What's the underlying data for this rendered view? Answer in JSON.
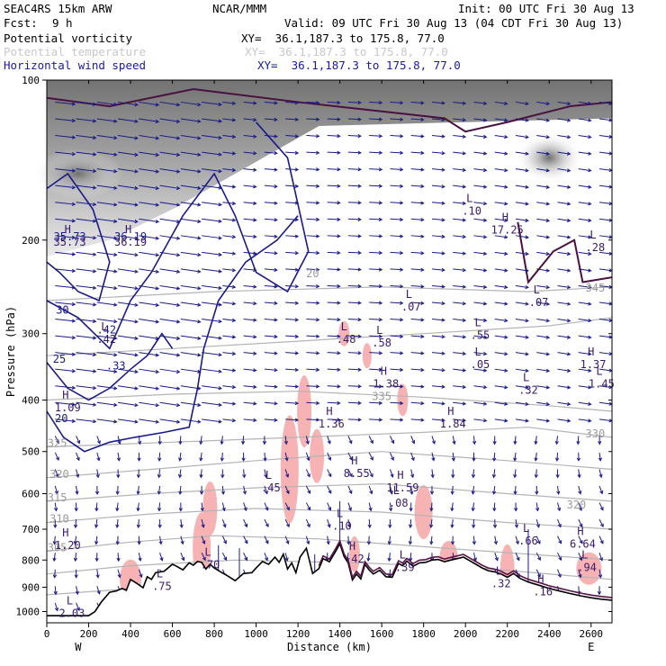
{
  "header": {
    "model": "SEAC4RS 15km ARW",
    "org": "NCAR/MMM",
    "init": "Init: 00 UTC Fri 30 Aug 13",
    "fcst_label": "Fcst:",
    "fcst_value": "9 h",
    "valid": "Valid: 09 UTC Fri 30 Aug 13 (04 CDT Fri 30 Aug 13)",
    "fields": [
      {
        "name": "Potential vorticity",
        "xy": "XY=  36.1,187.3 to 175.8, 77.0",
        "color": "#000000"
      },
      {
        "name": "Potential temperature",
        "xy": "XY=  36.1,187.3 to 175.8, 77.0",
        "color": "#c8c8c8"
      },
      {
        "name": "Horizontal wind speed",
        "xy": "XY=  36.1,187.3 to 175.8, 77.0",
        "color": "#1a1aa0"
      }
    ]
  },
  "chart_data": {
    "type": "line",
    "title": "",
    "xlabel": "Distance (km)",
    "ylabel": "Pressure (hPa)",
    "xlim": [
      0,
      2700
    ],
    "ylim": [
      1050,
      100
    ],
    "y_scale": "log",
    "x_ticks": [
      0,
      200,
      400,
      600,
      800,
      1000,
      1200,
      1400,
      1600,
      1800,
      2000,
      2200,
      2400,
      2600
    ],
    "y_ticks": [
      100,
      200,
      300,
      400,
      500,
      600,
      700,
      800,
      900,
      1000
    ],
    "x_end_labels": {
      "left": "W",
      "right": "E"
    },
    "terrain": {
      "x": [
        0,
        200,
        230,
        260,
        300,
        330,
        360,
        380,
        400,
        430,
        460,
        480,
        500,
        520,
        560,
        600,
        620,
        650,
        680,
        700,
        720,
        740,
        760,
        780,
        800,
        830,
        860,
        900,
        940,
        980,
        1000,
        1030,
        1060,
        1090,
        1110,
        1130,
        1150,
        1170,
        1190,
        1210,
        1240,
        1270,
        1300,
        1320,
        1350,
        1380,
        1400,
        1420,
        1440,
        1460,
        1480,
        1500,
        1520,
        1540,
        1560,
        1590,
        1620,
        1650,
        1680,
        1700,
        1720,
        1750,
        1780,
        1810,
        1840,
        1870,
        1900,
        1930,
        1960,
        1990,
        2020,
        2050,
        2080,
        2110,
        2140,
        2170,
        2200,
        2230,
        2260,
        2300,
        2350,
        2400,
        2450,
        2500,
        2550,
        2600,
        2650,
        2700
      ],
      "p": [
        1018,
        1018,
        1000,
        960,
        920,
        915,
        905,
        912,
        870,
        885,
        902,
        860,
        870,
        845,
        840,
        815,
        822,
        835,
        810,
        818,
        805,
        808,
        832,
        815,
        828,
        842,
        855,
        875,
        848,
        845,
        828,
        805,
        815,
        790,
        808,
        780,
        832,
        810,
        845,
        790,
        760,
        848,
        830,
        795,
        806,
        770,
        745,
        788,
        810,
        872,
        850,
        868,
        815,
        835,
        850,
        836,
        860,
        862,
        812,
        820,
        804,
        822,
        810,
        808,
        800,
        798,
        806,
        800,
        795,
        790,
        802,
        815,
        828,
        838,
        842,
        850,
        862,
        848,
        866,
        880,
        892,
        905,
        915,
        925,
        934,
        942,
        948,
        952
      ]
    },
    "wind_speed_contours": [
      {
        "label": "35.73",
        "x": 110,
        "p": 200
      },
      {
        "label": "36.19",
        "x": 400,
        "p": 200
      },
      {
        "label": "30",
        "x": 75,
        "p": 275
      },
      {
        "label": "25",
        "x": 60,
        "p": 340
      },
      {
        "label": "20",
        "x": 70,
        "p": 440
      },
      {
        "label": ".42",
        "x": 285,
        "p": 300
      },
      {
        "label": ".33",
        "x": 330,
        "p": 350
      }
    ],
    "potential_temperature_contours": [
      {
        "label": "345",
        "x": 2620,
        "p": 250
      },
      {
        "label": "335",
        "x": 1600,
        "p": 400
      },
      {
        "label": "330",
        "x": 2620,
        "p": 470
      },
      {
        "label": "325",
        "x": 50,
        "p": 490
      },
      {
        "label": "320",
        "x": 60,
        "p": 560
      },
      {
        "label": "320",
        "x": 2530,
        "p": 640
      },
      {
        "label": "315",
        "x": 50,
        "p": 620
      },
      {
        "label": "310",
        "x": 60,
        "p": 680
      },
      {
        "label": "305",
        "x": 50,
        "p": 770
      },
      {
        "label": "20",
        "x": 1270,
        "p": 235
      }
    ],
    "extrema": [
      {
        "type": "H",
        "value": "36.19",
        "x": 400,
        "p": 200
      },
      {
        "type": "H",
        "value": "35.73",
        "x": 110,
        "p": 200
      },
      {
        "type": "H",
        "value": "1.09",
        "x": 100,
        "p": 410
      },
      {
        "type": "L",
        "value": ".42",
        "x": 285,
        "p": 305
      },
      {
        "type": "L",
        "value": ".48",
        "x": 1430,
        "p": 305
      },
      {
        "type": "L",
        "value": ".58",
        "x": 1600,
        "p": 310
      },
      {
        "type": "L",
        "value": ".07",
        "x": 1740,
        "p": 265
      },
      {
        "type": "H",
        "value": "17.25",
        "x": 2200,
        "p": 190
      },
      {
        "type": "L",
        "value": ".10",
        "x": 2030,
        "p": 175
      },
      {
        "type": "L",
        "value": ".55",
        "x": 2070,
        "p": 300
      },
      {
        "type": "L",
        "value": ".05",
        "x": 2070,
        "p": 340
      },
      {
        "type": "H",
        "value": "1.38",
        "x": 1620,
        "p": 370
      },
      {
        "type": "L",
        "value": ".32",
        "x": 2300,
        "p": 380
      },
      {
        "type": "L",
        "value": ".07",
        "x": 2350,
        "p": 260
      },
      {
        "type": "L",
        "value": ".28",
        "x": 2620,
        "p": 205
      },
      {
        "type": "H",
        "value": "1.37",
        "x": 2610,
        "p": 340
      },
      {
        "type": "L",
        "value": "1.45",
        "x": 2650,
        "p": 370
      },
      {
        "type": "H",
        "value": "1.36",
        "x": 1360,
        "p": 440
      },
      {
        "type": "H",
        "value": "1.84",
        "x": 1940,
        "p": 440
      },
      {
        "type": "H",
        "value": "8.55",
        "x": 1480,
        "p": 545
      },
      {
        "type": "H",
        "value": "11.59",
        "x": 1700,
        "p": 580
      },
      {
        "type": "L",
        "value": ".45",
        "x": 1070,
        "p": 580
      },
      {
        "type": "L",
        "value": ".08",
        "x": 1680,
        "p": 620
      },
      {
        "type": "L",
        "value": ".10",
        "x": 1410,
        "p": 685
      },
      {
        "type": "L",
        "value": ".66",
        "x": 2300,
        "p": 730
      },
      {
        "type": "H",
        "value": "6.64",
        "x": 2560,
        "p": 740
      },
      {
        "type": "H",
        "value": "1.20",
        "x": 100,
        "p": 745
      },
      {
        "type": "L",
        "value": ".70",
        "x": 780,
        "p": 810
      },
      {
        "type": "L",
        "value": ".75",
        "x": 550,
        "p": 890
      },
      {
        "type": "H",
        "value": ".42",
        "x": 1470,
        "p": 790
      },
      {
        "type": "L",
        "value": ".39",
        "x": 1710,
        "p": 820
      },
      {
        "type": "L",
        "value": ".32",
        "x": 2170,
        "p": 880
      },
      {
        "type": "H",
        "value": ".16",
        "x": 2370,
        "p": 910
      },
      {
        "type": "L",
        "value": ".94",
        "x": 2580,
        "p": 820
      },
      {
        "type": "L",
        "value": "2.03",
        "x": 120,
        "p": 1000
      }
    ]
  }
}
